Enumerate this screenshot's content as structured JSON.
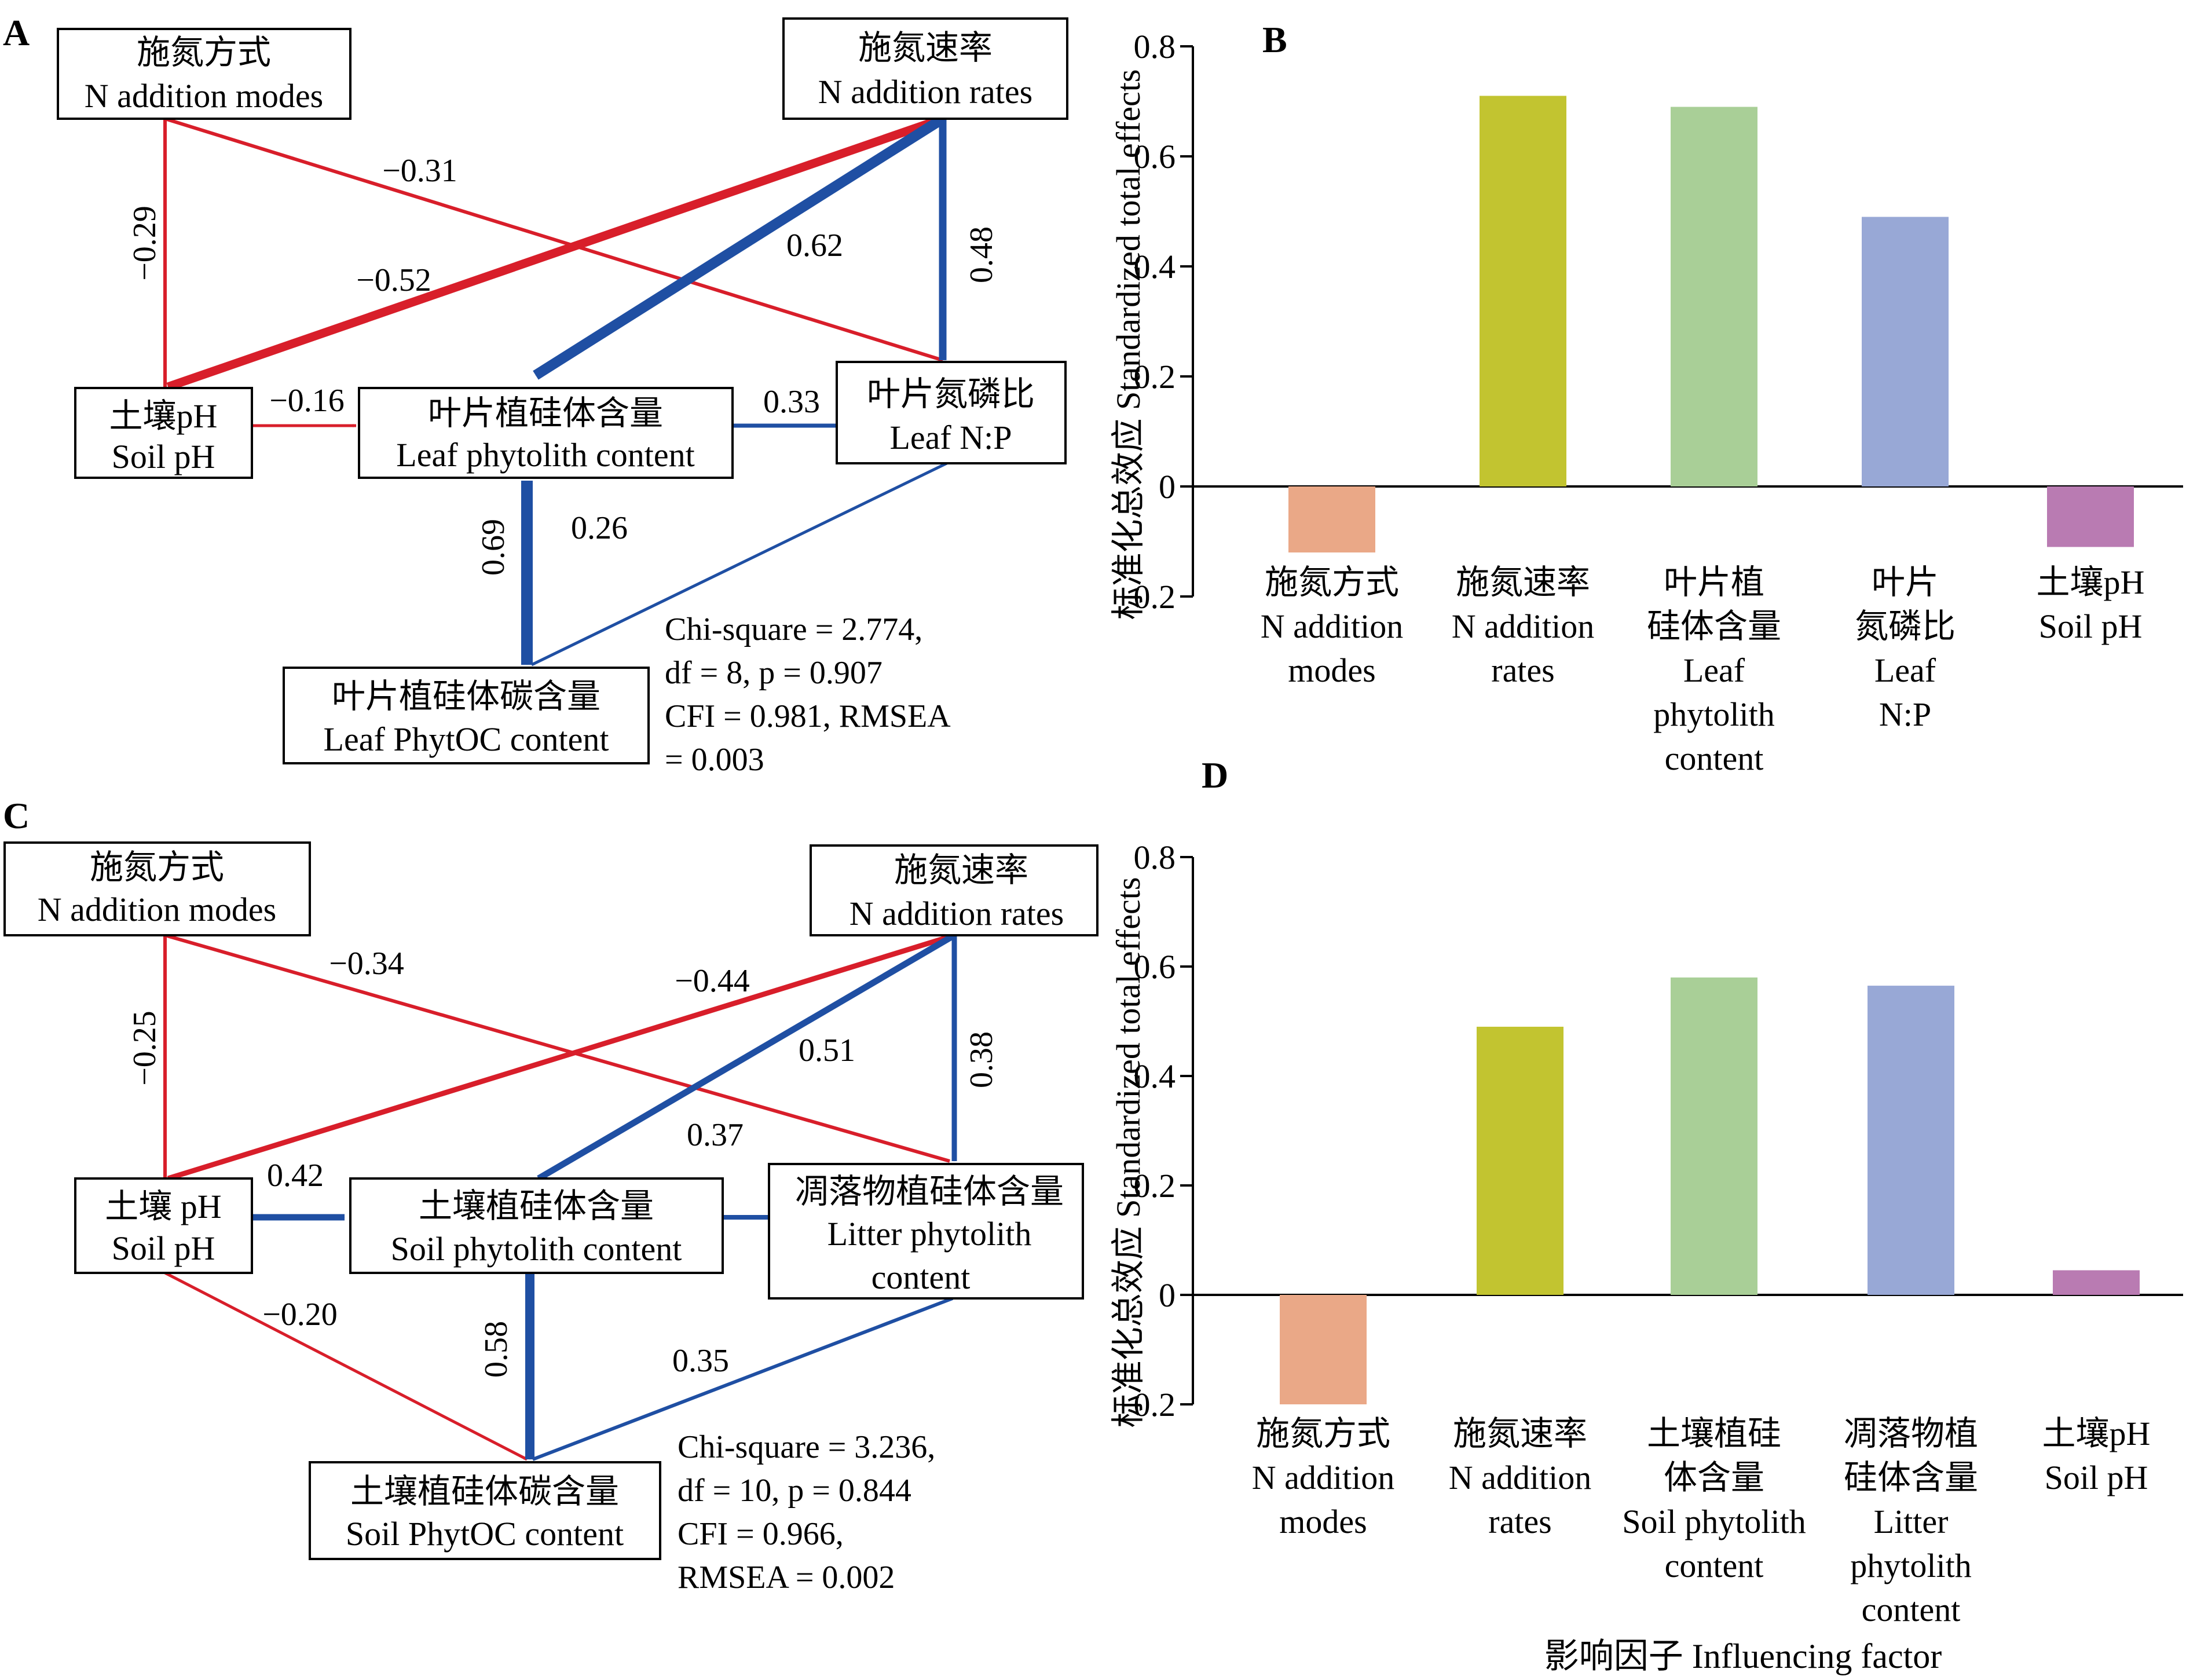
{
  "colors": {
    "negative": "#d81e2a",
    "positive": "#1f4fa3"
  },
  "panels": {
    "a": "A",
    "b": "B",
    "c": "C",
    "d": "D"
  },
  "sem_a": {
    "nodes": {
      "modes": [
        "施氮方式",
        "N addition modes"
      ],
      "rates": [
        "施氮速率",
        "N addition rates"
      ],
      "ph": [
        "土壤pH",
        "Soil pH"
      ],
      "phyto": [
        "叶片植硅体含量",
        "Leaf phytolith content"
      ],
      "np": [
        "叶片氮磷比",
        "Leaf N:P"
      ],
      "phytoc": [
        "叶片植硅体碳含量",
        "Leaf  PhytOC content"
      ]
    },
    "paths": {
      "modes_ph": "−0.29",
      "modes_np": "−0.31",
      "rates_ph": "−0.52",
      "rates_phyto": "0.62",
      "rates_np": "0.48",
      "ph_phyto": "−0.16",
      "np_phyto": "0.33",
      "phyto_phytoc": "0.69",
      "np_phytoc": "0.26"
    },
    "fit": [
      "Chi-square = 2.774,",
      "df = 8, p = 0.907",
      "CFI = 0.981, RMSEA",
      "= 0.003"
    ]
  },
  "sem_c": {
    "nodes": {
      "modes": [
        "施氮方式",
        "N addition modes"
      ],
      "rates": [
        "施氮速率",
        "N addition rates"
      ],
      "ph": [
        "土壤 pH",
        "Soil pH"
      ],
      "phyto": [
        "土壤植硅体含量",
        "Soil phytolith content"
      ],
      "litter": [
        "凋落物植硅体含量",
        "Litter phytolith",
        "content"
      ],
      "phytoc": [
        "土壤植硅体碳含量",
        "Soil  PhytOC content"
      ]
    },
    "paths": {
      "modes_ph": "−0.25",
      "modes_litter": "−0.34",
      "rates_ph": "−0.44",
      "rates_phyto": "0.51",
      "rates_litter": "0.38",
      "litter_phyto_note": "0.37",
      "ph_phyto": "0.42",
      "ph_phytoc": "−0.20",
      "phyto_phytoc": "0.58",
      "litter_phytoc": "0.35"
    },
    "fit": [
      "Chi-square = 3.236,",
      "df = 10, p = 0.844",
      "CFI = 0.966,",
      "RMSEA = 0.002"
    ]
  },
  "y_axis_label": "标准化总效应 Standardized total effects",
  "x_axis_label": "影响因子 Influencing factor",
  "chart_data": [
    {
      "type": "bar",
      "panel": "B",
      "categories": [
        [
          "施氮方式",
          "N addition",
          "modes"
        ],
        [
          "施氮速率",
          "N addition",
          "rates"
        ],
        [
          "叶片植",
          "硅体含量",
          "Leaf",
          "phytolith",
          "content"
        ],
        [
          "叶片",
          "氮磷比",
          "Leaf",
          "N:P"
        ],
        [
          "土壤pH",
          "Soil pH"
        ]
      ],
      "values": [
        -0.12,
        0.71,
        0.69,
        0.49,
        -0.11
      ],
      "bar_colors": [
        "#eaa887",
        "#c2c430",
        "#a9cf97",
        "#98a8d6",
        "#b97bb2"
      ],
      "ylim": [
        -0.2,
        0.8
      ],
      "yticks": [
        "−0.2",
        "0",
        "0.2",
        "0.4",
        "0.6",
        "0.8"
      ],
      "ylabel": "标准化总效应 Standardized total effects"
    },
    {
      "type": "bar",
      "panel": "D",
      "categories": [
        [
          "施氮方式",
          "N addition",
          "modes"
        ],
        [
          "施氮速率",
          "N addition",
          "rates"
        ],
        [
          "土壤植硅",
          "体含量",
          "Soil phytolith",
          "content"
        ],
        [
          "凋落物植",
          "硅体含量",
          "Litter",
          "phytolith",
          "content"
        ],
        [
          "土壤pH",
          "Soil pH"
        ]
      ],
      "values": [
        -0.2,
        0.49,
        0.58,
        0.565,
        0.045
      ],
      "bar_colors": [
        "#eaa887",
        "#c2c430",
        "#a9cf97",
        "#98a8d6",
        "#b97bb2"
      ],
      "ylim": [
        -0.2,
        0.8
      ],
      "yticks": [
        "−0.2",
        "0",
        "0.2",
        "0.4",
        "0.6",
        "0.8"
      ],
      "ylabel": "标准化总效应 Standardized total effects",
      "xlabel": "影响因子 Influencing factor"
    }
  ]
}
